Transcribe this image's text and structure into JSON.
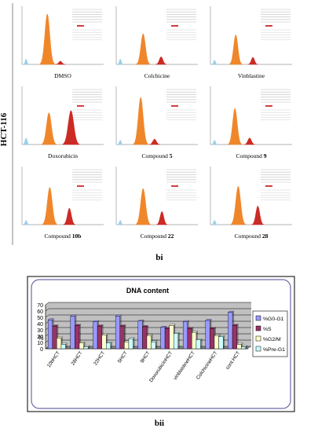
{
  "figure_a": {
    "cell_line": "HCT-116",
    "panel_label": "bi",
    "panels": [
      {
        "caption": "DMSO",
        "caption_bold": "",
        "peaks": [
          {
            "pos": 0.05,
            "h": 0.1,
            "w": 0.012,
            "color": "#9ad0ea"
          },
          {
            "pos": 0.31,
            "h": 0.92,
            "w": 0.03,
            "color": "#f0862a"
          },
          {
            "pos": 0.47,
            "h": 0.06,
            "w": 0.02,
            "color": "#cc2a24"
          }
        ]
      },
      {
        "caption": "Colchicine",
        "caption_bold": "",
        "peaks": [
          {
            "pos": 0.05,
            "h": 0.1,
            "w": 0.012,
            "color": "#9ad0ea"
          },
          {
            "pos": 0.33,
            "h": 0.56,
            "w": 0.028,
            "color": "#f0862a"
          },
          {
            "pos": 0.55,
            "h": 0.14,
            "w": 0.022,
            "color": "#cc2a24"
          }
        ]
      },
      {
        "caption": "Vinblastine",
        "caption_bold": "",
        "peaks": [
          {
            "pos": 0.05,
            "h": 0.08,
            "w": 0.012,
            "color": "#9ad0ea"
          },
          {
            "pos": 0.31,
            "h": 0.54,
            "w": 0.026,
            "color": "#f0862a"
          },
          {
            "pos": 0.52,
            "h": 0.13,
            "w": 0.02,
            "color": "#cc2a24"
          }
        ]
      },
      {
        "caption": "Doxorubicin",
        "caption_bold": "",
        "peaks": [
          {
            "pos": 0.05,
            "h": 0.12,
            "w": 0.014,
            "color": "#9ad0ea"
          },
          {
            "pos": 0.33,
            "h": 0.58,
            "w": 0.03,
            "color": "#f0862a"
          },
          {
            "pos": 0.6,
            "h": 0.62,
            "w": 0.034,
            "color": "#cc2a24"
          }
        ]
      },
      {
        "caption": "Compound ",
        "caption_bold": "5",
        "peaks": [
          {
            "pos": 0.05,
            "h": 0.08,
            "w": 0.012,
            "color": "#9ad0ea"
          },
          {
            "pos": 0.3,
            "h": 0.86,
            "w": 0.03,
            "color": "#f0862a"
          },
          {
            "pos": 0.47,
            "h": 0.1,
            "w": 0.022,
            "color": "#cc2a24"
          }
        ]
      },
      {
        "caption": "Compound ",
        "caption_bold": "9",
        "peaks": [
          {
            "pos": 0.05,
            "h": 0.08,
            "w": 0.012,
            "color": "#9ad0ea"
          },
          {
            "pos": 0.3,
            "h": 0.66,
            "w": 0.028,
            "color": "#f0862a"
          },
          {
            "pos": 0.48,
            "h": 0.12,
            "w": 0.022,
            "color": "#cc2a24"
          }
        ]
      },
      {
        "caption": "Compound ",
        "caption_bold": "10b",
        "peaks": [
          {
            "pos": 0.05,
            "h": 0.08,
            "w": 0.012,
            "color": "#9ad0ea"
          },
          {
            "pos": 0.34,
            "h": 0.68,
            "w": 0.03,
            "color": "#f0862a"
          },
          {
            "pos": 0.58,
            "h": 0.3,
            "w": 0.024,
            "color": "#cc2a24"
          }
        ]
      },
      {
        "caption": "Compound ",
        "caption_bold": "22",
        "peaks": [
          {
            "pos": 0.05,
            "h": 0.08,
            "w": 0.012,
            "color": "#9ad0ea"
          },
          {
            "pos": 0.33,
            "h": 0.66,
            "w": 0.03,
            "color": "#f0862a"
          },
          {
            "pos": 0.56,
            "h": 0.24,
            "w": 0.022,
            "color": "#cc2a24"
          }
        ]
      },
      {
        "caption": "Compound ",
        "caption_bold": "28",
        "peaks": [
          {
            "pos": 0.05,
            "h": 0.08,
            "w": 0.012,
            "color": "#9ad0ea"
          },
          {
            "pos": 0.34,
            "h": 0.7,
            "w": 0.03,
            "color": "#f0862a"
          },
          {
            "pos": 0.58,
            "h": 0.34,
            "w": 0.024,
            "color": "#cc2a24"
          }
        ]
      }
    ]
  },
  "figure_b": {
    "panel_label": "bii",
    "plot_area_color": "#c0c0c0",
    "frame_color": "#6b6ba8",
    "chart_bg": "#ffffff"
  },
  "chart_data": {
    "type": "bar",
    "title": "DNA content",
    "xlabel": "",
    "ylabel": "%",
    "ylim": [
      0,
      70
    ],
    "yticks": [
      0,
      10,
      20,
      30,
      40,
      50,
      60,
      70
    ],
    "grid": true,
    "legend_position": "right",
    "categories": [
      "10bHCT",
      "28HCT",
      "22HCT",
      "5HCT",
      "9HCT",
      "DoxorubicinHCT",
      "vinblastineHCT",
      "ColchicineHCT",
      "cont.HCT"
    ],
    "series": [
      {
        "name": "%G0-G1",
        "color": "#9999ff",
        "values": [
          46,
          52,
          43,
          52,
          44,
          34,
          43,
          45,
          58
        ]
      },
      {
        "name": "%S",
        "color": "#993366",
        "values": [
          36,
          37,
          36,
          36,
          35,
          32,
          32,
          32,
          37
        ]
      },
      {
        "name": "%G2/M",
        "color": "#ffffcc",
        "values": [
          17,
          9,
          22,
          11,
          21,
          37,
          26,
          21,
          7
        ]
      },
      {
        "name": "%Pre-G1",
        "color": "#ccffff",
        "values": [
          7,
          3,
          9,
          16,
          11,
          24,
          14,
          19,
          3
        ]
      }
    ]
  }
}
